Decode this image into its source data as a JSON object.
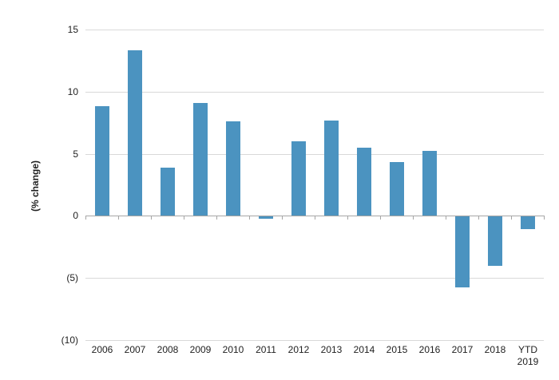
{
  "chart_data": {
    "type": "bar",
    "title": "",
    "xlabel": "",
    "ylabel": "(% change)",
    "categories": [
      "2006",
      "2007",
      "2008",
      "2009",
      "2010",
      "2011",
      "2012",
      "2013",
      "2014",
      "2015",
      "2016",
      "2017",
      "2018",
      "YTD\n2019"
    ],
    "values": [
      8.8,
      13.3,
      3.9,
      9.1,
      7.6,
      -0.2,
      6.0,
      7.7,
      5.5,
      4.3,
      5.2,
      -5.7,
      -4.0,
      -1.0
    ],
    "ylim": [
      -10,
      15
    ],
    "y_ticks": [
      {
        "value": 15,
        "label": "15"
      },
      {
        "value": 10,
        "label": "10"
      },
      {
        "value": 5,
        "label": "5"
      },
      {
        "value": 0,
        "label": "0"
      },
      {
        "value": -5,
        "label": "(5)"
      },
      {
        "value": -10,
        "label": "(10)"
      }
    ],
    "grid": true,
    "legend": "none",
    "colors": {
      "bar": "#4b93c0",
      "gridline": "#d9d9d9",
      "axis": "#a6a6a6",
      "text": "#1f1f1f",
      "background": "#ffffff"
    }
  }
}
